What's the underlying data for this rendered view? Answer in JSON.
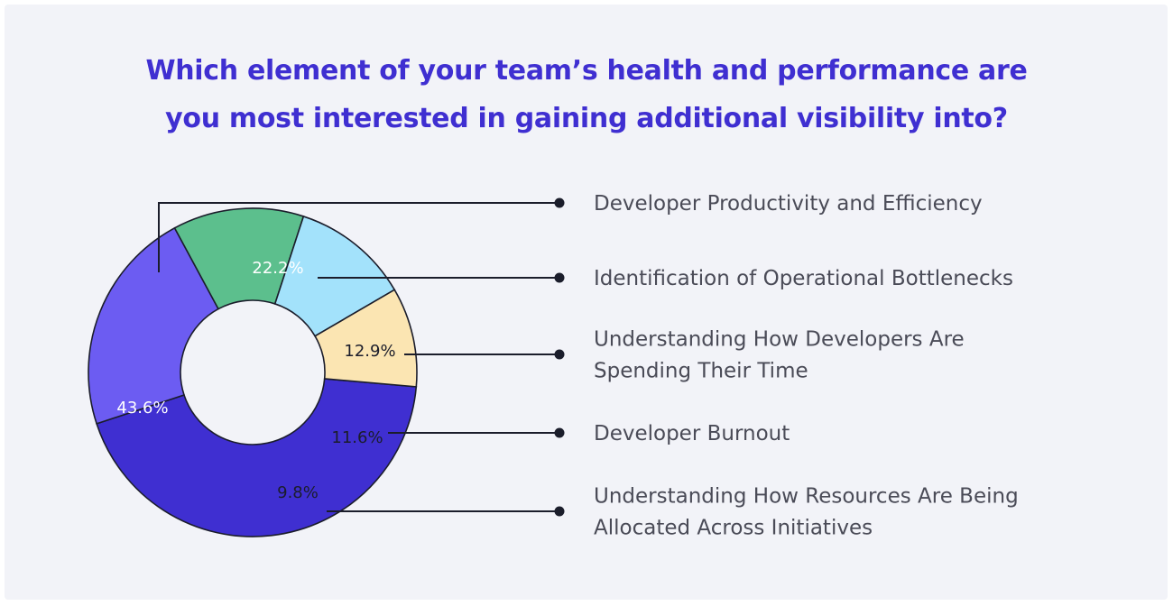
{
  "title_line1": "Which element of your team’s health and performance are",
  "title_line2": "you most interested in gaining additional visibility into?",
  "chart_data": {
    "type": "pie",
    "style": "donut",
    "title": "Which element of your team’s health and performance are you most interested in gaining additional visibility into?",
    "slices": [
      {
        "label": "Developer Productivity and Efficiency",
        "value": 43.6,
        "value_label": "43.6%",
        "color": "#3f2fd1",
        "label_color": "#ffffff",
        "lines": [
          "Developer Productivity and Efficiency"
        ]
      },
      {
        "label": "Identification of Operational Bottlenecks",
        "value": 22.2,
        "value_label": "22.2%",
        "color": "#6c5cf2",
        "label_color": "#ffffff",
        "lines": [
          "Identification of Operational Bottlenecks"
        ]
      },
      {
        "label": "Understanding How Developers Are Spending Their Time",
        "value": 12.9,
        "value_label": "12.9%",
        "color": "#5cbf8d",
        "label_color": "#1b1d2b",
        "lines": [
          "Understanding How Developers Are",
          "Spending Their Time"
        ]
      },
      {
        "label": "Developer Burnout",
        "value": 11.6,
        "value_label": "11.6%",
        "color": "#a3e2fb",
        "label_color": "#1b1d2b",
        "lines": [
          "Developer Burnout"
        ]
      },
      {
        "label": "Understanding How Resources Are Being Allocated Across Initiatives",
        "value": 9.8,
        "value_label": "9.8%",
        "color": "#fbe5b2",
        "label_color": "#1b1d2b",
        "lines": [
          "Understanding How Resources Are Being",
          "Allocated Across Initiatives"
        ]
      }
    ],
    "legend": "right"
  },
  "colors": {
    "title": "#3f2fd1",
    "background": "#f2f3f8",
    "leader": "#1b1d2b",
    "text": "#4a4b57"
  }
}
